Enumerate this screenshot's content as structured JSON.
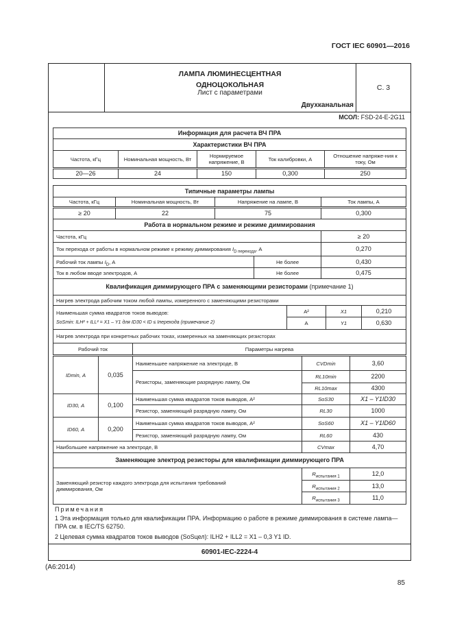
{
  "standard": "ГОСТ IEC 60901—2016",
  "header": {
    "title1": "ЛАМПА ЛЮМИНЕСЦЕНТНАЯ",
    "title2": "ОДНОЦОКОЛЬНАЯ",
    "subtitle": "Лист с параметрами",
    "variant": "Двухканальная",
    "page": "С. 3"
  },
  "msol": {
    "label": "МСОЛ:",
    "value": "FSD-24-E-2G11"
  },
  "ballast_info": {
    "title": "Информация для расчета ВЧ ПРА",
    "subtitle": "Характеристики ВЧ ПРА",
    "headers": [
      "Частота, кГц",
      "Номинальная мощность, Вт",
      "Нормируемое напряжение, В",
      "Ток калибровки, А",
      "Отношение напряже-ния к току, Ом"
    ],
    "values": [
      "20—26",
      "24",
      "150",
      "0,300",
      "250"
    ]
  },
  "lamp": {
    "title": "Типичные параметры лампы",
    "headers": [
      "Частота, кГц",
      "Номинальная мощность, Вт",
      "Напряжение на лампе, В",
      "Ток лампы, А"
    ],
    "values": [
      "≥ 20",
      "22",
      "75",
      "0,300"
    ]
  },
  "operation": {
    "title": "Работа в нормальном режиме и режиме диммирования",
    "freq": {
      "label": "Частота, кГц",
      "value": "≥ 20"
    },
    "transition": {
      "label": "Ток перехода от работы в нормальном режиме к режиму диммирования ",
      "sym": "I",
      "sub": "D перехода",
      "unit": ", А",
      "value": "0,270"
    },
    "lamp_current": {
      "label": "Рабочий ток лампы ",
      "sym": "I",
      "sub": "D",
      "unit": ", А",
      "limit": "Не более",
      "value": "0,430"
    },
    "electrode_current": {
      "label": "Ток в любом вводе электродов, А",
      "limit": "Не более",
      "value": "0,475"
    }
  },
  "qualification": {
    "title_bold": "Квалификация диммирующего ПРА с заменяющими резисторами",
    "title_note": " (примечание 1)",
    "heating1": "Нагрев электрода рабочим током любой лампы, измеренного с заменяющими резисторами",
    "sos_label1": "Наименьшая сумма квадратов токов выводов:",
    "sos_label2": "SoSmin: ILH² + ILL² = X1 – Y1 для ID30 < ID ≤ Iперехода (примечание 2)",
    "x1": {
      "unit": "A²",
      "sym": "X1",
      "value": "0,210"
    },
    "y1": {
      "unit": "A",
      "sym": "Y1",
      "value": "0,630"
    },
    "heating2": "Нагрев электрода при конкретных рабочих токах, измеренных на заменяющих резисторах",
    "col_current": "Рабочий ток",
    "col_params": "Параметры нагрева",
    "groups": [
      {
        "current": "IDmin, А",
        "value": "0,035",
        "rows": [
          {
            "label": "Наименьшее напряжение на электроде, В",
            "sym": "CVDmin",
            "value": "3,60"
          },
          {
            "label": "Резисторы, заменяющие разрядную лампу, Ом",
            "sym": "RL10min",
            "value": "2200"
          },
          {
            "sym": "RL10max",
            "value": "4300"
          }
        ]
      },
      {
        "current": "ID30, А",
        "value": "0,100",
        "rows": [
          {
            "label": "Наименьшая сумма квадратов токов выводов, А²",
            "sym": "SoS30",
            "value": "X1 – Y1ID30"
          },
          {
            "label": "Резистор, заменяющий разрядную лампу, Ом",
            "sym": "RL30",
            "value": "1000"
          }
        ]
      },
      {
        "current": "ID60, А",
        "value": "0,200",
        "rows": [
          {
            "label": "Наименьшая сумма квадратов токов выводов, А²",
            "sym": "SoS60",
            "value": "X1 – Y1ID60"
          },
          {
            "label": "Резистор, заменяющий разрядную лампу, Ом",
            "sym": "RL60",
            "value": "430"
          }
        ]
      }
    ],
    "max_voltage": {
      "label": "Наибольшее напряжение на электроде, В",
      "sym": "CVmax",
      "value": "4,70"
    }
  },
  "resistors": {
    "title": "Заменяющие электрод резисторы для квалификации диммирующего ПРА",
    "label": "Заменяющий резистор каждого электрода для испытания требований диммирования, Ом",
    "rows": [
      {
        "sym": "R",
        "sub": "испытания 1",
        "value": "12,0"
      },
      {
        "sym": "R",
        "sub": "испытания 2",
        "value": "13,0"
      },
      {
        "sym": "R",
        "sub": "испытания 3",
        "value": "11,0"
      }
    ]
  },
  "notes": {
    "heading": "Примечания",
    "n1": "1 Эта информация только для квалификации ПРА. Информацию о работе в режиме диммирования в системе лампа—ПРА см. в IEC/TS 62750.",
    "n2": "2 Целевая сумма квадратов токов выводов (SoSцел): ILH2 + ILL2 = X1 – 0,3 Y1 ID."
  },
  "sheet_code": "60901-IEC-2224-4",
  "amendment": "(A6:2014)",
  "page_number": "85"
}
